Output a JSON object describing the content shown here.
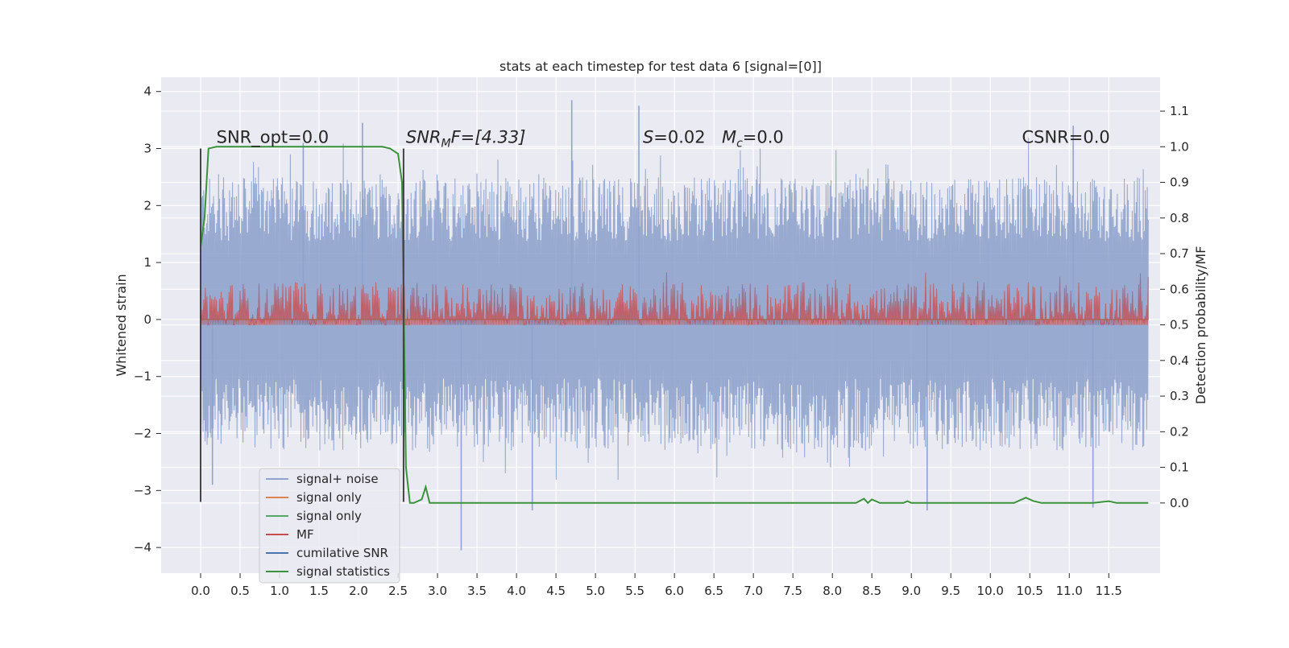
{
  "chart_data": {
    "type": "line",
    "title": "stats at each timestep for test data 6 [signal=[0]]",
    "xlabel": "",
    "ylabel": "Whitened strain",
    "y2label": "Detection probability/MF",
    "xlim": [
      -0.5,
      12.15
    ],
    "ylim": [
      -4.45,
      4.25
    ],
    "y2lim": [
      -0.197,
      1.195
    ],
    "x_ticks": [
      "0.0",
      "0.5",
      "1.0",
      "1.5",
      "2.0",
      "2.5",
      "3.0",
      "3.5",
      "4.0",
      "4.5",
      "5.0",
      "5.5",
      "6.0",
      "6.5",
      "7.0",
      "7.5",
      "8.0",
      "8.5",
      "9.0",
      "9.5",
      "10.0",
      "10.5",
      "11.0",
      "11.5"
    ],
    "y_ticks": [
      "4",
      "3",
      "2",
      "1",
      "0",
      "−1",
      "−2",
      "−3",
      "−4"
    ],
    "y2_ticks": [
      "1.1",
      "1.0",
      "0.9",
      "0.8",
      "0.7",
      "0.6",
      "0.5",
      "0.4",
      "0.3",
      "0.2",
      "0.1",
      "0.0"
    ],
    "grid": true,
    "legend_position": "lower-left",
    "annotations": [
      {
        "text": "SNR_opt=0.0",
        "x": 0.2,
        "y": 3.1
      },
      {
        "text": "SNR",
        "sub": "M",
        "after": "F=[4.33]",
        "italic": true,
        "x": 2.6,
        "y": 3.1
      },
      {
        "text": "S=0.02",
        "x": 5.6,
        "y": 3.1
      },
      {
        "text": "M",
        "sub": "c",
        "after": "=0.0",
        "italic": true,
        "x": 6.6,
        "y": 3.1
      },
      {
        "text": "CSNR=0.0",
        "x": 10.4,
        "y": 3.1
      }
    ],
    "vlines": [
      {
        "x": 0.0,
        "y": [
          -3.2,
          3.0
        ]
      },
      {
        "x": 2.57,
        "y": [
          -3.2,
          3.0
        ]
      }
    ],
    "series": [
      {
        "name": "signal+ noise",
        "color": "#8fa3cc",
        "axis": "left",
        "style": "noise",
        "x_range": [
          0,
          12
        ],
        "envelope": [
          -2.3,
          2.5
        ],
        "peaks_high": [
          [
            4.7,
            3.85
          ],
          [
            5.55,
            3.75
          ],
          [
            2.05,
            3.45
          ],
          [
            1.3,
            3.1
          ],
          [
            11.05,
            3.4
          ]
        ],
        "peaks_low": [
          [
            3.3,
            -4.05
          ],
          [
            4.2,
            -3.35
          ],
          [
            9.2,
            -3.35
          ],
          [
            11.3,
            -3.3
          ],
          [
            0.15,
            -2.9
          ]
        ]
      },
      {
        "name": "signal only",
        "color": "#dd8452",
        "axis": "left",
        "values_x": [
          0,
          12
        ],
        "values_y": [
          0,
          0
        ]
      },
      {
        "name": "signal only",
        "color": "#55a868",
        "axis": "left",
        "values_x": [
          0,
          12
        ],
        "values_y": [
          0,
          0
        ]
      },
      {
        "name": "MF",
        "color": "#c44e52",
        "axis": "right",
        "style": "noise",
        "x_range": [
          0,
          12
        ],
        "envelope": [
          0.5,
          0.62
        ],
        "peak": 0.66
      },
      {
        "name": "cumilative SNR",
        "color": "#4c72b0",
        "axis": "left",
        "values_x": [],
        "values_y": []
      },
      {
        "name": "signal statistics",
        "color": "#3a923a",
        "axis": "right",
        "x": [
          0.0,
          0.05,
          0.1,
          0.2,
          0.4,
          1.0,
          2.0,
          2.3,
          2.4,
          2.5,
          2.55,
          2.6,
          2.65,
          2.7,
          2.8,
          2.85,
          2.9,
          2.95,
          3.0,
          3.5,
          8.3,
          8.4,
          8.45,
          8.5,
          8.6,
          8.9,
          8.95,
          9.0,
          10.3,
          10.45,
          10.55,
          10.65,
          10.8,
          11.3,
          11.5,
          11.6,
          11.7,
          12.0
        ],
        "y": [
          0.72,
          0.8,
          0.995,
          1.0,
          1.0,
          1.0,
          1.0,
          1.0,
          0.995,
          0.98,
          0.9,
          0.1,
          0.0,
          0.0,
          0.01,
          0.045,
          0.0,
          0.0,
          0.0,
          0.0,
          0.0,
          0.012,
          0.0,
          0.01,
          0.0,
          0.0,
          0.005,
          0.0,
          0.0,
          0.015,
          0.005,
          0.0,
          0.0,
          0.0,
          0.005,
          0.0,
          0.0,
          0.0
        ]
      }
    ]
  }
}
